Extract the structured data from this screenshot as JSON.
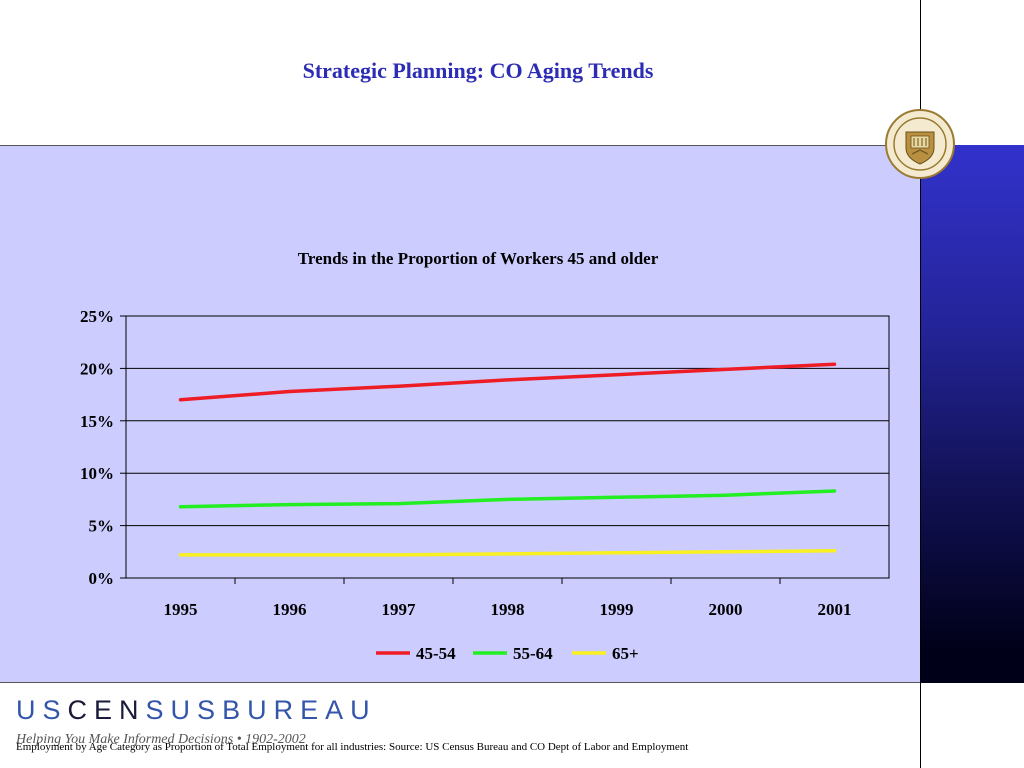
{
  "slide": {
    "title": "Strategic Planning: CO Aging Trends",
    "footnote": "Employment by Age Category as Proportion of Total Employment for all industries: Source: US Census Bureau and CO Dept of Labor and Employment"
  },
  "logo": {
    "letters": [
      "U",
      "S",
      "C",
      "E",
      "N",
      "S",
      "U",
      "S",
      "B",
      "U",
      "R",
      "E",
      "A",
      "U"
    ],
    "tagline": "Helping You Make Informed Decisions • 1902-2002",
    "seal_text": "U.S. DEPARTMENT OF COMMERCE • BUREAU OF THE CENSUS"
  },
  "chart_data": {
    "type": "line",
    "title": "Trends in the Proportion of Workers 45 and older",
    "categories": [
      "1995",
      "1996",
      "1997",
      "1998",
      "1999",
      "2000",
      "2001"
    ],
    "ylim": [
      0,
      25
    ],
    "yticks": [
      0,
      5,
      10,
      15,
      20,
      25
    ],
    "ytick_labels": [
      "0%",
      "5%",
      "10%",
      "15%",
      "20%",
      "25%"
    ],
    "grid": true,
    "legend_position": "bottom",
    "series": [
      {
        "name": "45-54",
        "color": "#ee1c24",
        "values": [
          17.0,
          17.8,
          18.3,
          18.9,
          19.4,
          19.9,
          20.4
        ]
      },
      {
        "name": "55-64",
        "color": "#22ee22",
        "values": [
          6.8,
          7.0,
          7.1,
          7.5,
          7.7,
          7.9,
          8.3
        ]
      },
      {
        "name": "65+",
        "color": "#f8f020",
        "values": [
          2.2,
          2.2,
          2.2,
          2.3,
          2.4,
          2.5,
          2.6
        ]
      }
    ]
  },
  "colors": {
    "title": "#2c2cb4",
    "panel": "#ccccff",
    "logo_blue": "#3355aa",
    "logo_dark": "#1a1a3a"
  }
}
